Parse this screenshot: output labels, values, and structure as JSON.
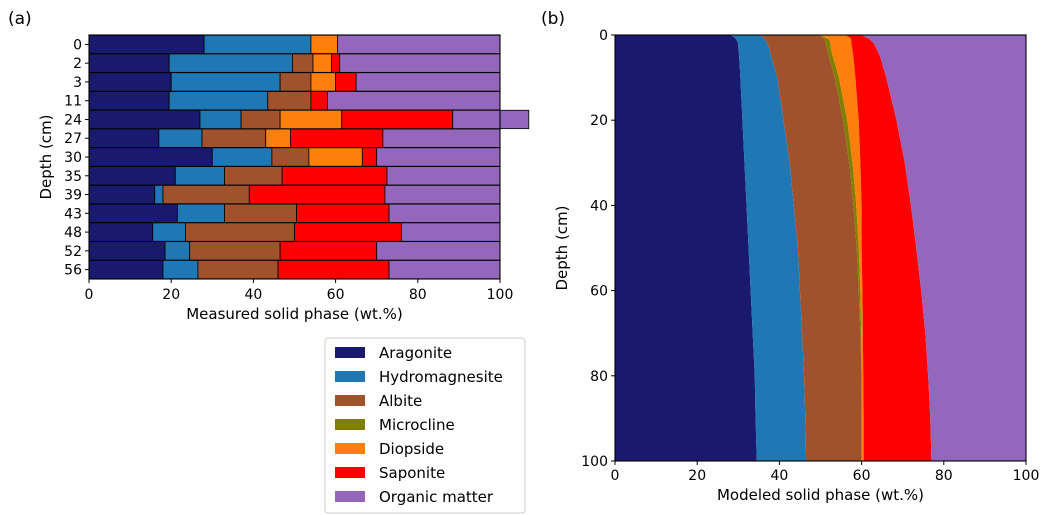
{
  "chart_data": [
    {
      "type": "bar",
      "orientation": "horizontal",
      "stacked": true,
      "panel_label": "(a)",
      "xlabel": "Measured solid phase (wt.%)",
      "ylabel": "Depth (cm)",
      "xlim": [
        0,
        100
      ],
      "xticks": [
        0,
        20,
        40,
        60,
        80,
        100
      ],
      "categories": [
        "0",
        "2",
        "3",
        "11",
        "24",
        "27",
        "30",
        "35",
        "39",
        "43",
        "48",
        "52",
        "56"
      ],
      "series": [
        {
          "name": "Aragonite",
          "color": "#191970",
          "values": [
            28,
            19.5,
            20,
            19.5,
            27,
            17,
            30,
            21,
            16,
            21.5,
            15.5,
            18.5,
            18
          ]
        },
        {
          "name": "Hydromagnesite",
          "color": "#1f77b4",
          "values": [
            26,
            30,
            26.5,
            24,
            10,
            10.5,
            14.5,
            12,
            2,
            11.5,
            8,
            6,
            8.5
          ]
        },
        {
          "name": "Albite",
          "color": "#a0522d",
          "values": [
            0,
            5,
            7.5,
            10.5,
            9.5,
            15.5,
            9,
            14,
            21,
            17.5,
            26.5,
            22,
            19.5
          ]
        },
        {
          "name": "Microcline",
          "color": "#808000",
          "values": [
            0,
            0,
            0,
            0,
            0,
            0,
            0,
            0,
            0,
            0,
            0,
            0,
            0
          ]
        },
        {
          "name": "Diopside",
          "color": "#ff7f0e",
          "values": [
            6.5,
            4.5,
            6,
            0,
            15,
            6,
            13,
            0,
            0,
            0,
            0,
            0,
            0
          ]
        },
        {
          "name": "Saponite",
          "color": "#ff0000",
          "values": [
            0,
            2,
            5,
            4,
            27,
            22.5,
            3.5,
            25.5,
            33,
            22.5,
            26,
            23.5,
            27
          ]
        },
        {
          "name": "Organic matter",
          "color": "#9467bd",
          "values": [
            39.5,
            39,
            35,
            42,
            18.5,
            28.5,
            30,
            27.5,
            28,
            27,
            24,
            30,
            27
          ]
        }
      ]
    },
    {
      "type": "area",
      "stacked": true,
      "panel_label": "(b)",
      "xlabel": "Modeled solid phase (wt.%)",
      "ylabel": "Depth (cm)",
      "xlim": [
        0,
        100
      ],
      "ylim": [
        0,
        100
      ],
      "y_inverted": true,
      "xticks": [
        0,
        20,
        40,
        60,
        80,
        100
      ],
      "yticks": [
        0,
        20,
        40,
        60,
        80,
        100
      ],
      "depth": [
        0,
        0.5,
        1,
        2,
        3,
        5,
        10,
        20,
        30,
        40,
        50,
        60,
        70,
        80,
        90,
        100
      ],
      "boundaries": [
        [
          28,
          29,
          29.5,
          30,
          30,
          30.2,
          30.5,
          31,
          31.5,
          32,
          32.5,
          33,
          33.5,
          34,
          34.2,
          34.5
        ],
        [
          35,
          36,
          36.5,
          37,
          37.5,
          38,
          39.5,
          41,
          42.5,
          43.5,
          44.5,
          45,
          45.5,
          46,
          46.3,
          46.5
        ],
        [
          49.5,
          50.5,
          51,
          51.3,
          51.5,
          52,
          53.5,
          55.5,
          57,
          58,
          58.8,
          59.3,
          59.7,
          60,
          60,
          60
        ],
        [
          50,
          51,
          52,
          52.5,
          52.5,
          53,
          54.5,
          56.5,
          57.8,
          58.7,
          59.3,
          59.7,
          59.9,
          60,
          60,
          60
        ],
        [
          56,
          57,
          57.5,
          57.5,
          57.7,
          58,
          58.5,
          59.3,
          59.7,
          60,
          60,
          60.2,
          60.3,
          60.4,
          60.5,
          60.5
        ],
        [
          60,
          61,
          62,
          63,
          63.5,
          64.5,
          66,
          68.5,
          70.5,
          72,
          73.3,
          74.5,
          75.5,
          76.2,
          76.7,
          77
        ]
      ],
      "series": [
        {
          "name": "Aragonite",
          "color": "#191970"
        },
        {
          "name": "Hydromagnesite",
          "color": "#1f77b4"
        },
        {
          "name": "Albite",
          "color": "#a0522d"
        },
        {
          "name": "Microcline",
          "color": "#808000"
        },
        {
          "name": "Diopside",
          "color": "#ff7f0e"
        },
        {
          "name": "Saponite",
          "color": "#ff0000"
        },
        {
          "name": "Organic matter",
          "color": "#9467bd"
        }
      ]
    }
  ],
  "legend": {
    "placement": "below-left-panel",
    "items": [
      "Aragonite",
      "Hydromagnesite",
      "Albite",
      "Microcline",
      "Diopside",
      "Saponite",
      "Organic matter"
    ],
    "colors": [
      "#191970",
      "#1f77b4",
      "#a0522d",
      "#808000",
      "#ff7f0e",
      "#ff0000",
      "#9467bd"
    ]
  }
}
